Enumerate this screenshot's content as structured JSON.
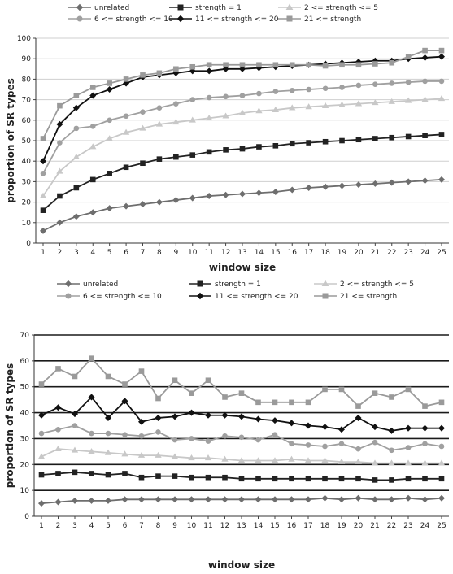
{
  "chart_data": [
    {
      "type": "line",
      "xlabel": "window size",
      "ylabel": "proportion of SR types",
      "ylim": [
        0,
        100
      ],
      "yticks": [
        "0",
        "10",
        "20",
        "30",
        "40",
        "50",
        "60",
        "70",
        "80",
        "90",
        "100"
      ],
      "x": [
        1,
        2,
        3,
        4,
        5,
        6,
        7,
        8,
        9,
        10,
        11,
        12,
        13,
        14,
        15,
        16,
        17,
        18,
        19,
        20,
        21,
        22,
        23,
        24,
        25
      ],
      "grid": "horizontal",
      "legend": "top",
      "series": [
        {
          "name": "unrelated",
          "color": "#6e6e6e",
          "marker": "diamond",
          "values": [
            6,
            10,
            13,
            15,
            17,
            18,
            19,
            20,
            21,
            22,
            23,
            23.5,
            24,
            24.5,
            25,
            26,
            27,
            27.5,
            28,
            28.5,
            29,
            29.5,
            30,
            30.5,
            31
          ]
        },
        {
          "name": "strength = 1",
          "color": "#222222",
          "marker": "square",
          "values": [
            16,
            23,
            27,
            31,
            34,
            37,
            39,
            41,
            42,
            43,
            44.5,
            45.5,
            46,
            47,
            47.5,
            48.5,
            49,
            49.5,
            50,
            50.5,
            51,
            51.5,
            52,
            52.5,
            53
          ]
        },
        {
          "name": "2 <= strength <= 5",
          "color": "#c8c8c8",
          "marker": "triangle",
          "values": [
            23,
            35,
            42,
            47,
            51,
            54,
            56,
            58,
            59,
            60,
            61,
            62,
            63.5,
            64.5,
            65,
            66,
            66.5,
            67,
            67.5,
            68,
            68.5,
            69,
            69.5,
            70,
            70.5
          ]
        },
        {
          "name": "6 <= strength <= 10",
          "color": "#a0a0a0",
          "marker": "circle",
          "values": [
            34,
            49,
            56,
            57,
            60,
            62,
            64,
            66,
            68,
            70,
            71,
            71.5,
            72,
            73,
            74,
            74.5,
            75,
            75.5,
            76,
            77,
            77.5,
            78,
            78.5,
            79,
            79
          ]
        },
        {
          "name": "11 <= strength <= 20",
          "color": "#111111",
          "marker": "diamond",
          "values": [
            40,
            58,
            66,
            72,
            75,
            78,
            81,
            82,
            83,
            84,
            84,
            85,
            85,
            85.5,
            86,
            86.5,
            87,
            87.5,
            88,
            88.5,
            89,
            89,
            90,
            90.5,
            91
          ]
        },
        {
          "name": "21 <= strength",
          "color": "#9a9a9a",
          "marker": "square",
          "values": [
            51,
            67,
            72,
            76,
            78,
            80,
            82,
            83,
            85,
            86,
            87,
            87,
            87,
            87,
            87,
            87,
            87,
            86.5,
            87,
            87,
            87.5,
            88,
            91,
            94,
            94
          ]
        }
      ]
    },
    {
      "type": "line",
      "xlabel": "window size",
      "ylabel": "proportion of SR types",
      "ylim": [
        0,
        70
      ],
      "yticks": [
        "0",
        "10",
        "20",
        "30",
        "40",
        "50",
        "60",
        "70"
      ],
      "x": [
        1,
        2,
        3,
        4,
        5,
        6,
        7,
        8,
        9,
        10,
        11,
        12,
        13,
        14,
        15,
        16,
        17,
        18,
        19,
        20,
        21,
        22,
        23,
        24,
        25
      ],
      "grid": "horizontal",
      "legend": "top",
      "series": [
        {
          "name": "unrelated",
          "color": "#6e6e6e",
          "marker": "diamond",
          "values": [
            5,
            5.5,
            6,
            6,
            6,
            6.5,
            6.5,
            6.5,
            6.5,
            6.5,
            6.5,
            6.5,
            6.5,
            6.5,
            6.5,
            6.5,
            6.5,
            7,
            6.5,
            7,
            6.5,
            6.5,
            7,
            6.5,
            7
          ]
        },
        {
          "name": "strength = 1",
          "color": "#222222",
          "marker": "square",
          "values": [
            16,
            16.5,
            17,
            16.5,
            16,
            16.5,
            15,
            15.5,
            15.5,
            15,
            15,
            15,
            14.5,
            14.5,
            14.5,
            14.5,
            14.5,
            14.5,
            14.5,
            14.5,
            14,
            14,
            14.5,
            14.5,
            14.5
          ]
        },
        {
          "name": "2 <= strength <= 5",
          "color": "#c8c8c8",
          "marker": "triangle",
          "values": [
            23,
            26,
            25.5,
            25,
            24.5,
            24,
            23.5,
            23.5,
            23,
            22.5,
            22.5,
            22,
            21.5,
            21.5,
            21.5,
            22,
            21.5,
            21.5,
            21,
            21,
            20.5,
            20.5,
            20.5,
            20.5,
            20.5
          ]
        },
        {
          "name": "6 <= strength <= 10",
          "color": "#a0a0a0",
          "marker": "circle",
          "values": [
            32,
            33.5,
            35,
            32,
            32,
            31.5,
            31,
            32.5,
            29.5,
            30,
            29,
            31,
            30.5,
            29.5,
            31.5,
            28,
            27.5,
            27,
            28,
            26,
            28.5,
            25.5,
            26.5,
            28,
            27
          ]
        },
        {
          "name": "11 <= strength <= 20",
          "color": "#111111",
          "marker": "diamond",
          "values": [
            39,
            42,
            39.5,
            46,
            38,
            44.5,
            36.5,
            38,
            38.5,
            40,
            39,
            39,
            38.5,
            37.5,
            37,
            36,
            35,
            34.5,
            33.5,
            38,
            34.5,
            33,
            34,
            34,
            34
          ]
        },
        {
          "name": "21 <= strength",
          "color": "#9a9a9a",
          "marker": "square",
          "values": [
            51,
            57,
            54,
            61,
            54,
            51,
            56,
            45.5,
            52.5,
            47.5,
            52.5,
            46,
            47.5,
            44,
            44,
            44,
            44,
            49,
            49,
            42.5,
            47.5,
            46,
            49,
            42.5,
            44
          ]
        }
      ]
    }
  ]
}
